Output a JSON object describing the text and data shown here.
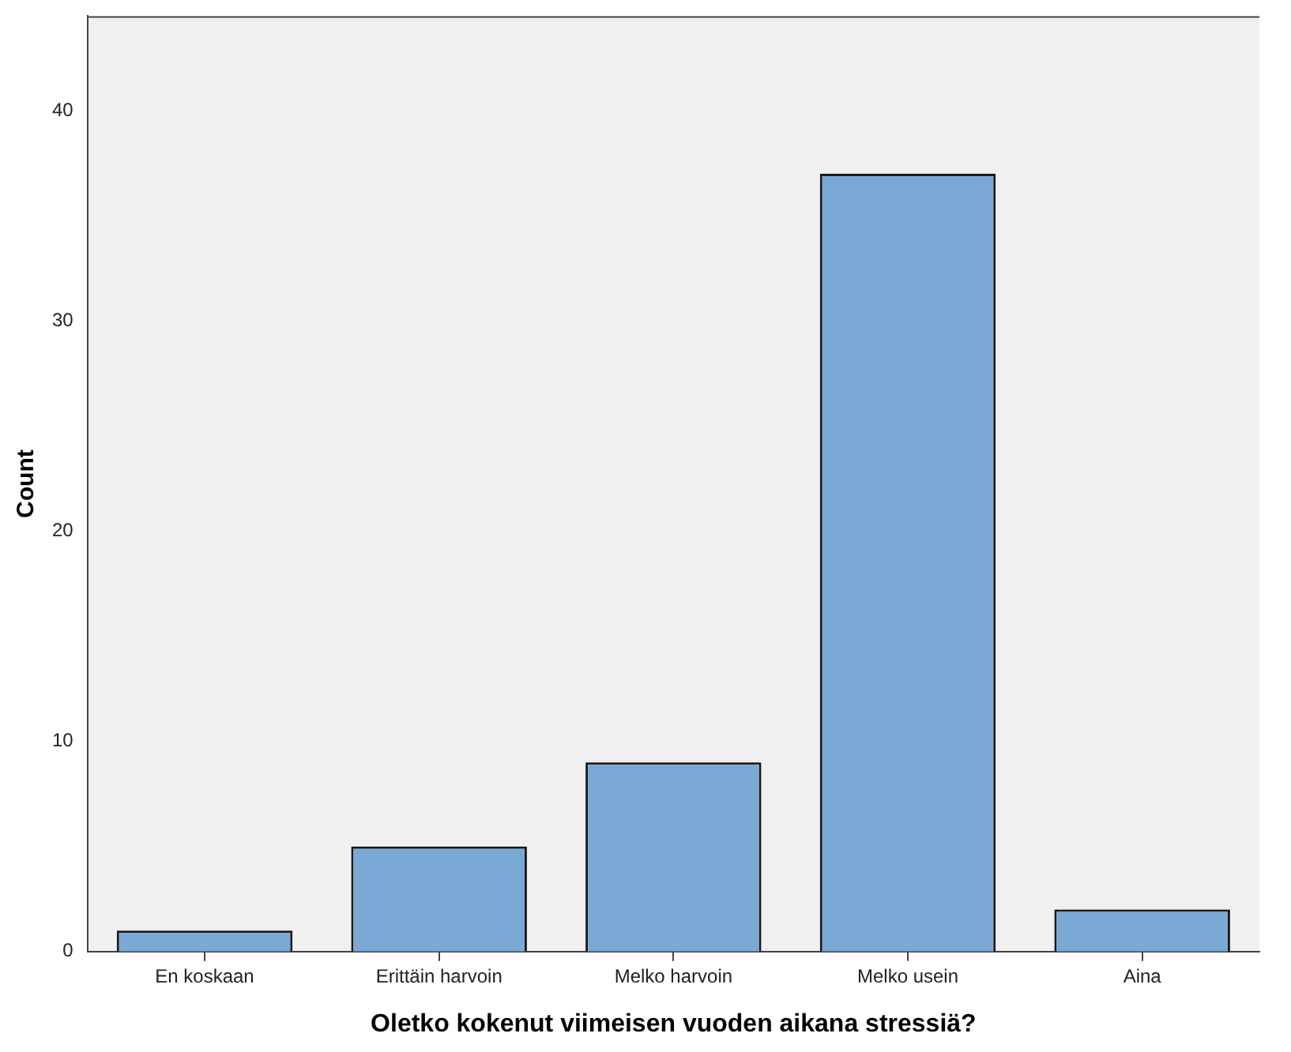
{
  "chart_data": {
    "type": "bar",
    "xlabel": "Oletko kokenut viimeisen vuoden aikana stressiä?",
    "ylabel": "Count",
    "categories": [
      "En koskaan",
      "Erittäin harvoin",
      "Melko harvoin",
      "Melko usein",
      "Aina"
    ],
    "values": [
      1,
      5,
      9,
      37,
      2
    ],
    "color": "#7aa9d6",
    "ylim": [
      0,
      44.5
    ],
    "yticks": [
      0,
      10,
      20,
      30,
      40
    ],
    "grid": false,
    "legend": false
  }
}
